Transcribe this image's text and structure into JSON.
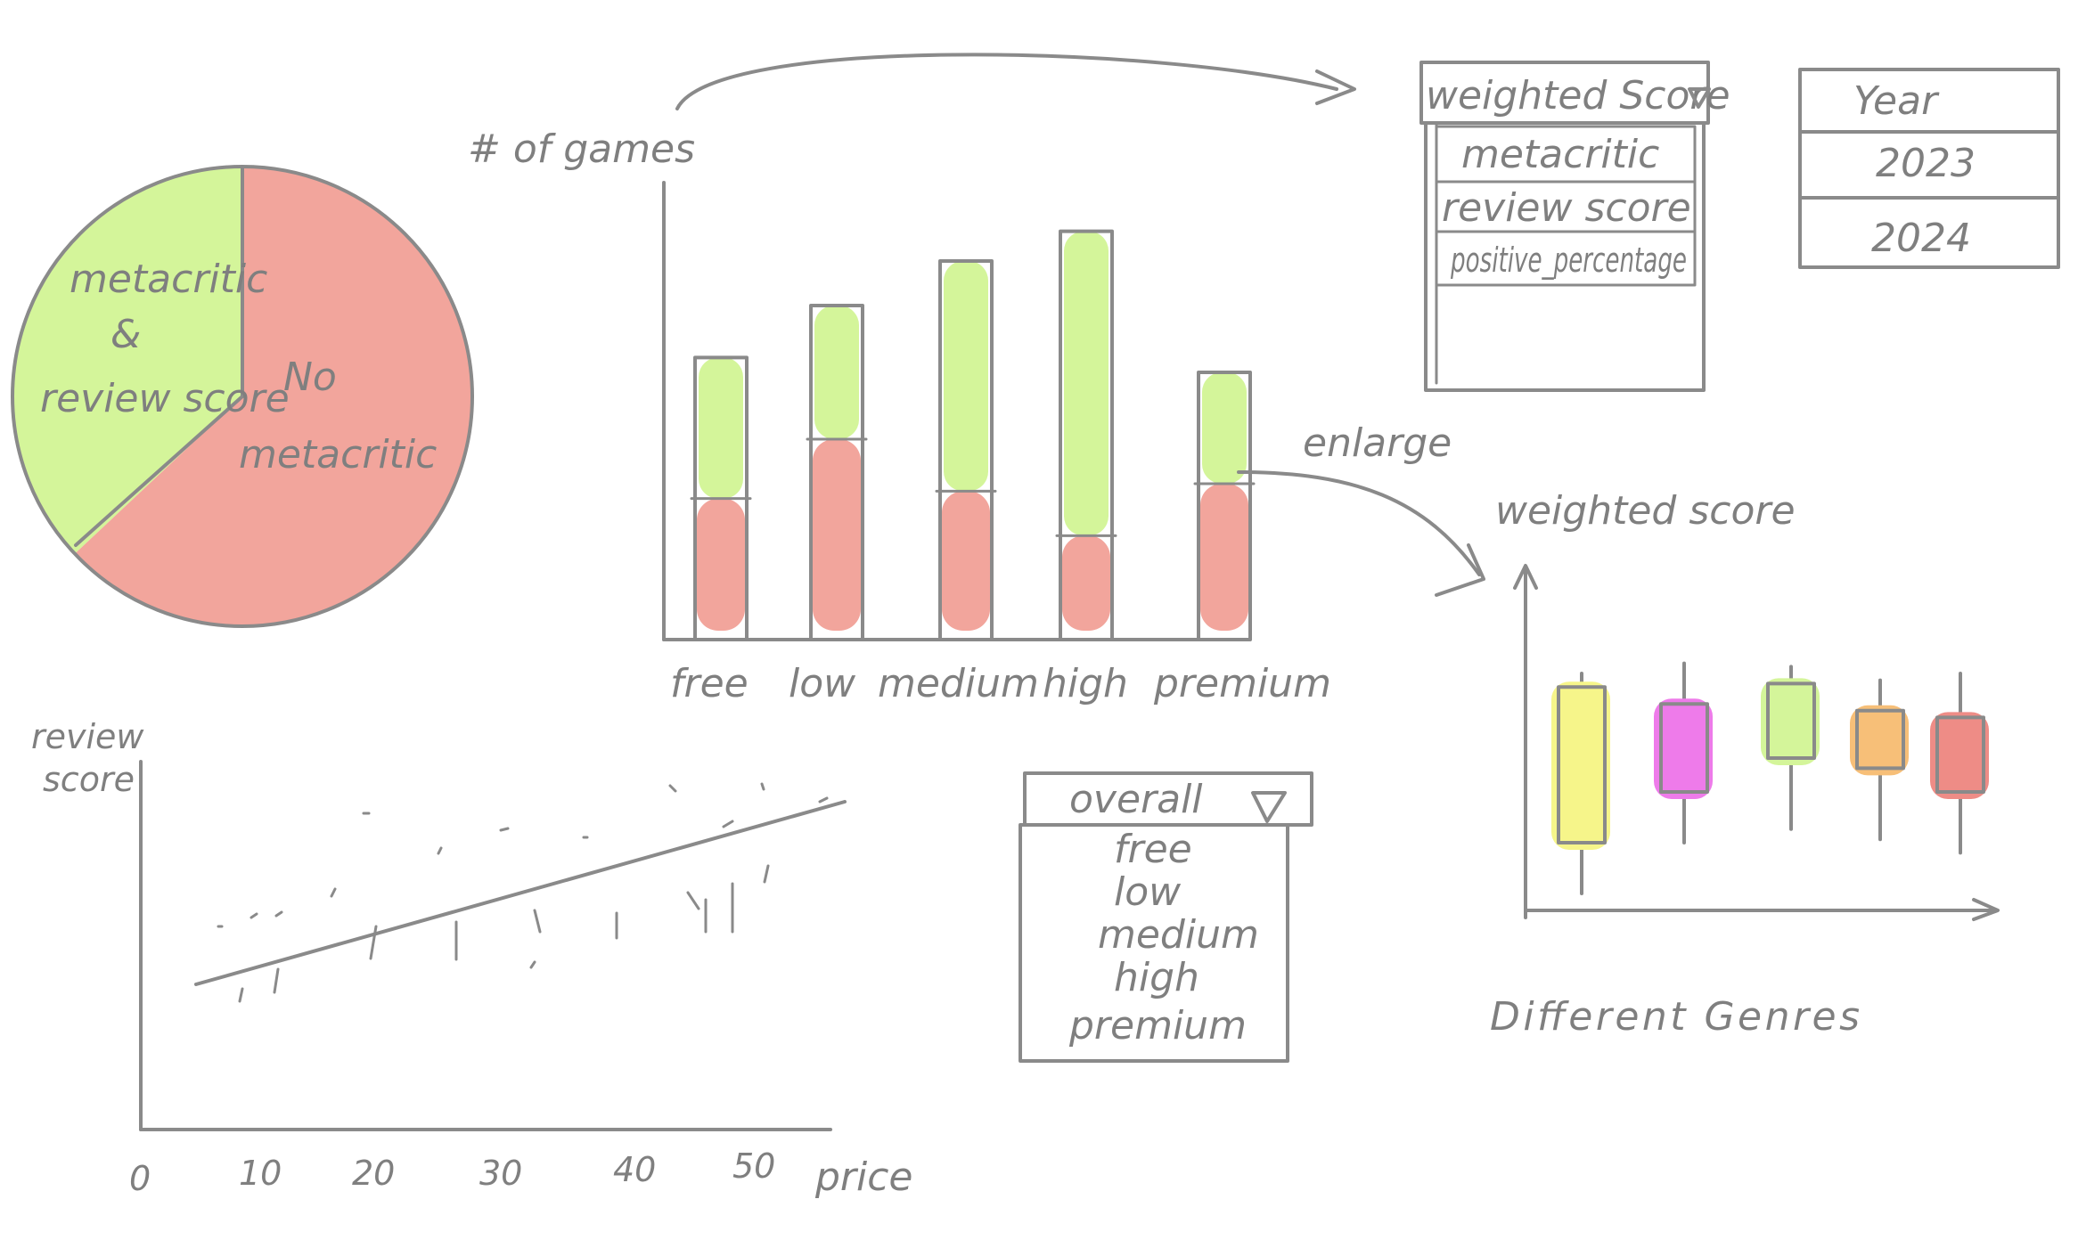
{
  "colors": {
    "ink": "#8a8a8a",
    "green": "#d4f59a",
    "red": "#f2a59c",
    "yellow": "#f6f58a",
    "magenta": "#ee7bea",
    "orange": "#f7bf78",
    "coral": "#ee8c86"
  },
  "pie": {
    "slices": [
      {
        "label_lines": [
          "metacritic",
          "&",
          "review score"
        ],
        "fraction": 0.37,
        "color": "#d4f59a"
      },
      {
        "label_lines": [
          "No",
          "metacritic"
        ],
        "fraction": 0.63,
        "color": "#f2a59c"
      }
    ]
  },
  "bar_chart": {
    "ylabel": "# of games",
    "categories": [
      "free",
      "low",
      "medium",
      "high",
      "premium"
    ],
    "stacks": [
      {
        "bottom": 95,
        "top": 190
      },
      {
        "bottom": 135,
        "top": 225
      },
      {
        "bottom": 100,
        "top": 255
      },
      {
        "bottom": 70,
        "top": 275
      },
      {
        "bottom": 105,
        "top": 180
      }
    ],
    "ymax": 300,
    "annotation": "enlarge"
  },
  "weighted_dropdown": {
    "selected": "weighted Score",
    "options": [
      "metacritic",
      "review score",
      "positive_percentage"
    ]
  },
  "year_table": {
    "header": "Year",
    "rows": [
      "2023",
      "2024"
    ]
  },
  "scatter": {
    "ylabel_lines": [
      "review",
      "score"
    ],
    "xlabel": "price",
    "x_ticks": [
      "0",
      "10",
      "20",
      "30",
      "40",
      "50"
    ]
  },
  "price_dropdown": {
    "selected": "overall",
    "options": [
      "free",
      "low",
      "medium",
      "high",
      "premium"
    ]
  },
  "box_chart": {
    "ylabel": "weighted score",
    "xlabel": "Different Genres",
    "boxes": [
      {
        "color": "#f6f58a",
        "low": 0.05,
        "q1": 0.2,
        "q3": 0.66,
        "high": 0.7
      },
      {
        "color": "#ee7bea",
        "low": 0.2,
        "q1": 0.35,
        "q3": 0.61,
        "high": 0.73
      },
      {
        "color": "#d4f59a",
        "low": 0.24,
        "q1": 0.45,
        "q3": 0.67,
        "high": 0.72
      },
      {
        "color": "#f7bf78",
        "low": 0.21,
        "q1": 0.42,
        "q3": 0.59,
        "high": 0.68
      },
      {
        "color": "#ee8c86",
        "low": 0.17,
        "q1": 0.35,
        "q3": 0.57,
        "high": 0.7
      }
    ]
  }
}
